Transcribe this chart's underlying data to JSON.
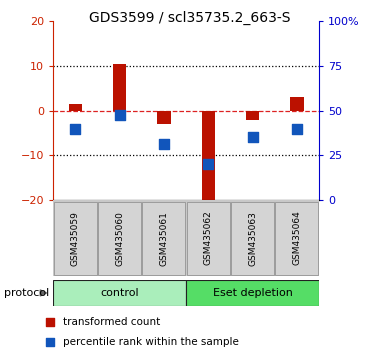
{
  "title": "GDS3599 / scl35735.2_663-S",
  "samples": [
    "GSM435059",
    "GSM435060",
    "GSM435061",
    "GSM435062",
    "GSM435063",
    "GSM435064"
  ],
  "red_bars": [
    1.5,
    10.5,
    -3.0,
    -20.0,
    -2.0,
    3.0
  ],
  "blue_squares_y": [
    -4.0,
    -1.0,
    -7.5,
    -12.0,
    -6.0,
    -4.0
  ],
  "ylim_left": [
    -20,
    20
  ],
  "ylim_right": [
    0,
    100
  ],
  "yticks_left": [
    -20,
    -10,
    0,
    10,
    20
  ],
  "yticks_right": [
    0,
    25,
    50,
    75,
    100
  ],
  "ytick_labels_right": [
    "0",
    "25",
    "50",
    "75",
    "100%"
  ],
  "red_bar_color": "#bb1100",
  "blue_sq_color": "#1155bb",
  "dashed_line_color": "#dd2222",
  "dotted_line_color": "#000000",
  "protocol_groups": [
    {
      "label": "control",
      "start": 0,
      "end": 3,
      "color": "#aaeebb"
    },
    {
      "label": "Eset depletion",
      "start": 3,
      "end": 6,
      "color": "#55dd66"
    }
  ],
  "legend_items": [
    {
      "label": "transformed count",
      "color": "#bb1100"
    },
    {
      "label": "percentile rank within the sample",
      "color": "#1155bb"
    }
  ],
  "title_fontsize": 10,
  "tick_fontsize": 8,
  "sample_fontsize": 6.5,
  "protocol_fontsize": 8,
  "legend_fontsize": 7.5
}
